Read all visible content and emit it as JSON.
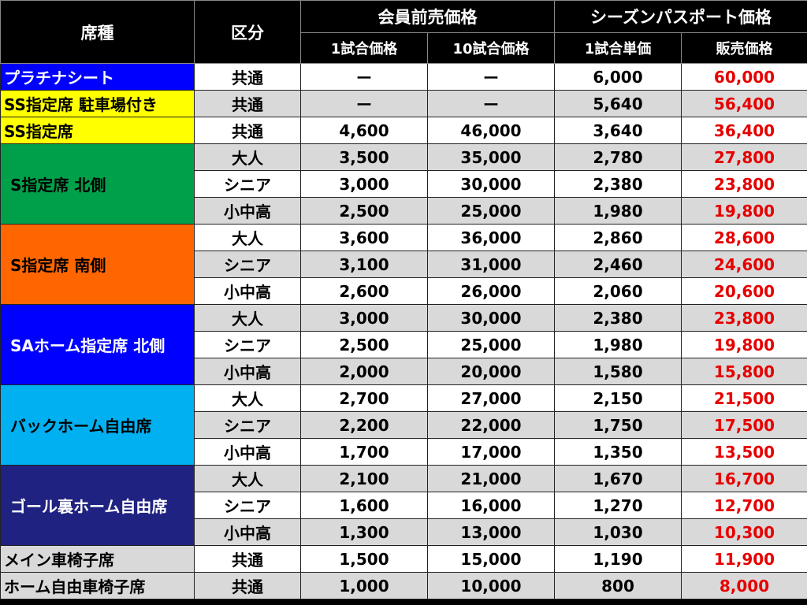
{
  "header": {
    "seat": "席種",
    "category": "区分",
    "member_group": "会員前売価格",
    "season_group": "シーズンパスポート価格",
    "sub": [
      "1試合価格",
      "10試合価格",
      "1試合単価",
      "販売価格"
    ]
  },
  "colors": {
    "odd_row": "#ffffff",
    "even_row": "#d9d9d9",
    "sale_price": "#e60000"
  },
  "seats": [
    {
      "name": "プラチナシート",
      "bg": "#0000ff",
      "text_color": "#ffffff",
      "rows": [
        {
          "cat": "共通",
          "v1": "ー",
          "v10": "ー",
          "unit": "6,000",
          "sale": "60,000"
        }
      ]
    },
    {
      "name": "SS指定席 駐車場付き",
      "bg": "#ffff00",
      "text_color": "#000000",
      "rows": [
        {
          "cat": "共通",
          "v1": "ー",
          "v10": "ー",
          "unit": "5,640",
          "sale": "56,400"
        }
      ]
    },
    {
      "name": "SS指定席",
      "bg": "#ffff00",
      "text_color": "#000000",
      "rows": [
        {
          "cat": "共通",
          "v1": "4,600",
          "v10": "46,000",
          "unit": "3,640",
          "sale": "36,400"
        }
      ]
    },
    {
      "name": "S指定席 北側",
      "bg": "#00a04a",
      "text_color": "#000000",
      "rows": [
        {
          "cat": "大人",
          "v1": "3,500",
          "v10": "35,000",
          "unit": "2,780",
          "sale": "27,800"
        },
        {
          "cat": "シニア",
          "v1": "3,000",
          "v10": "30,000",
          "unit": "2,380",
          "sale": "23,800"
        },
        {
          "cat": "小中高",
          "v1": "2,500",
          "v10": "25,000",
          "unit": "1,980",
          "sale": "19,800"
        }
      ]
    },
    {
      "name": "S指定席 南側",
      "bg": "#ff6600",
      "text_color": "#000000",
      "rows": [
        {
          "cat": "大人",
          "v1": "3,600",
          "v10": "36,000",
          "unit": "2,860",
          "sale": "28,600"
        },
        {
          "cat": "シニア",
          "v1": "3,100",
          "v10": "31,000",
          "unit": "2,460",
          "sale": "24,600"
        },
        {
          "cat": "小中高",
          "v1": "2,600",
          "v10": "26,000",
          "unit": "2,060",
          "sale": "20,600"
        }
      ]
    },
    {
      "name": "SAホーム指定席 北側",
      "bg": "#0000ff",
      "text_color": "#ffffff",
      "rows": [
        {
          "cat": "大人",
          "v1": "3,000",
          "v10": "30,000",
          "unit": "2,380",
          "sale": "23,800"
        },
        {
          "cat": "シニア",
          "v1": "2,500",
          "v10": "25,000",
          "unit": "1,980",
          "sale": "19,800"
        },
        {
          "cat": "小中高",
          "v1": "2,000",
          "v10": "20,000",
          "unit": "1,580",
          "sale": "15,800"
        }
      ]
    },
    {
      "name": "バックホーム自由席",
      "bg": "#00b0f0",
      "text_color": "#000000",
      "rows": [
        {
          "cat": "大人",
          "v1": "2,700",
          "v10": "27,000",
          "unit": "2,150",
          "sale": "21,500"
        },
        {
          "cat": "シニア",
          "v1": "2,200",
          "v10": "22,000",
          "unit": "1,750",
          "sale": "17,500"
        },
        {
          "cat": "小中高",
          "v1": "1,700",
          "v10": "17,000",
          "unit": "1,350",
          "sale": "13,500"
        }
      ]
    },
    {
      "name": "ゴール裏ホーム自由席",
      "bg": "#1f2280",
      "text_color": "#ffffff",
      "rows": [
        {
          "cat": "大人",
          "v1": "2,100",
          "v10": "21,000",
          "unit": "1,670",
          "sale": "16,700"
        },
        {
          "cat": "シニア",
          "v1": "1,600",
          "v10": "16,000",
          "unit": "1,270",
          "sale": "12,700"
        },
        {
          "cat": "小中高",
          "v1": "1,300",
          "v10": "13,000",
          "unit": "1,030",
          "sale": "10,300"
        }
      ]
    },
    {
      "name": "メイン車椅子席",
      "bg": "#d9d9d9",
      "text_color": "#000000",
      "rows": [
        {
          "cat": "共通",
          "v1": "1,500",
          "v10": "15,000",
          "unit": "1,190",
          "sale": "11,900"
        }
      ]
    },
    {
      "name": "ホーム自由車椅子席",
      "bg": "#d9d9d9",
      "text_color": "#000000",
      "rows": [
        {
          "cat": "共通",
          "v1": "1,000",
          "v10": "10,000",
          "unit": "800",
          "sale": "8,000"
        }
      ]
    }
  ]
}
